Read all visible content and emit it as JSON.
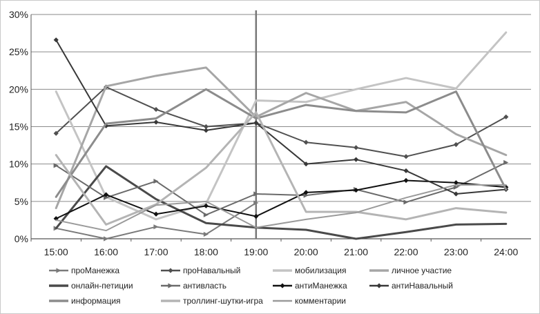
{
  "chart_data": {
    "type": "line",
    "title": "",
    "xlabel": "",
    "ylabel": "",
    "x": [
      "15:00",
      "16:00",
      "17:00",
      "18:00",
      "19:00",
      "20:00",
      "21:00",
      "22:00",
      "23:00",
      "24:00"
    ],
    "ylim": [
      0,
      30
    ],
    "yticks": [
      0,
      5,
      10,
      15,
      20,
      25,
      30
    ],
    "ytick_labels": [
      "0%",
      "5%",
      "10%",
      "15%",
      "20%",
      "25%",
      "30%"
    ],
    "grid": "horizontal",
    "vertical_marker_at": "19:00",
    "legend_position": "bottom",
    "series": [
      {
        "name": "проМанежка",
        "color": "#7a7a7a",
        "marker": "arrow",
        "width": 2,
        "values": [
          1.4,
          0,
          1.6,
          0.6,
          4.8,
          null,
          null,
          null,
          null,
          null
        ]
      },
      {
        "name": "проНавальный",
        "color": "#505050",
        "marker": "diamond",
        "width": 2,
        "values": [
          14.1,
          20.3,
          17.3,
          15.0,
          15.5,
          12.9,
          12.2,
          11.0,
          12.6,
          16.3
        ]
      },
      {
        "name": "мобилизация",
        "color": "#c4c4c4",
        "marker": "none",
        "width": 3,
        "values": [
          19.7,
          5.6,
          2.6,
          4.7,
          18.5,
          18.3,
          20.0,
          21.5,
          20.1,
          27.6
        ]
      },
      {
        "name": "личное участие",
        "color": "#a6a6a6",
        "marker": "none",
        "width": 3,
        "values": [
          4.1,
          20.4,
          21.8,
          22.9,
          16.3,
          19.5,
          17.1,
          18.3,
          14.0,
          11.2
        ]
      },
      {
        "name": "онлайн-петиции",
        "color": "#4a4a4a",
        "marker": "none",
        "width": 3,
        "values": [
          1.4,
          9.7,
          5.3,
          2.1,
          1.5,
          1.2,
          0,
          0.9,
          1.9,
          2.0
        ]
      },
      {
        "name": "антивласть",
        "color": "#6a6a6a",
        "marker": "arrow",
        "width": 2,
        "values": [
          9.8,
          5.5,
          7.7,
          3.2,
          6.0,
          5.8,
          6.6,
          4.9,
          6.9,
          10.2
        ]
      },
      {
        "name": "антиМанежка",
        "color": "#111111",
        "marker": "diamond",
        "width": 2,
        "values": [
          2.7,
          5.9,
          3.3,
          4.4,
          3.0,
          6.2,
          6.5,
          7.8,
          7.5,
          6.9
        ]
      },
      {
        "name": "антиНавальный",
        "color": "#383838",
        "marker": "diamond",
        "width": 2,
        "values": [
          26.6,
          15.1,
          15.6,
          14.5,
          15.5,
          10.0,
          10.6,
          9.1,
          6.0,
          6.6
        ]
      },
      {
        "name": "информация",
        "color": "#8c8c8c",
        "marker": "none",
        "width": 3,
        "values": [
          5.6,
          15.4,
          16.1,
          20.0,
          16.1,
          17.9,
          17.1,
          16.9,
          19.7,
          6.6
        ]
      },
      {
        "name": "троллинг-шутки-игра",
        "color": "#b4b4b4",
        "marker": "none",
        "width": 3,
        "values": [
          11.2,
          1.9,
          4.6,
          9.5,
          16.9,
          3.6,
          3.6,
          2.6,
          4.1,
          3.5
        ]
      },
      {
        "name": "комментарии",
        "color": "#9a9a9a",
        "marker": "none",
        "width": 2,
        "values": [
          2.5,
          1.1,
          4.5,
          5.0,
          1.5,
          2.6,
          3.5,
          5.5,
          7.2,
          7.2
        ]
      }
    ]
  }
}
